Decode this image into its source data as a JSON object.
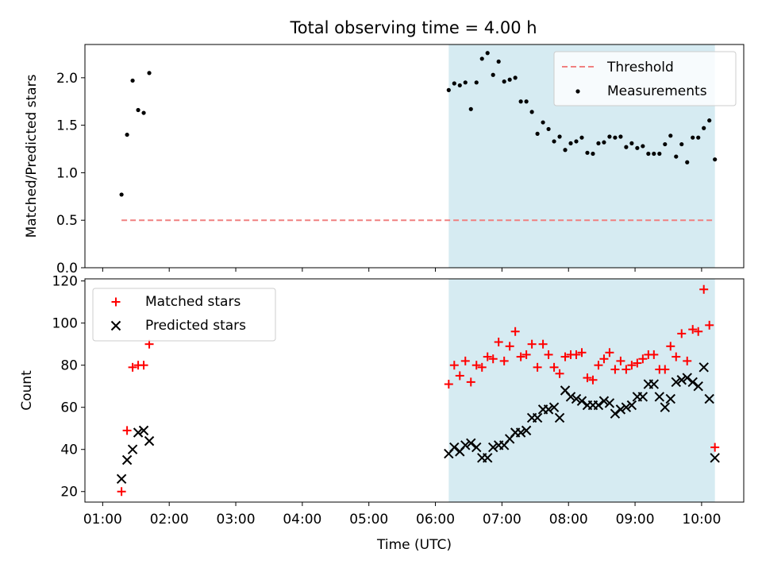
{
  "title": "Total observing time = 4.00 h",
  "colors": {
    "shade": "#add8e6",
    "threshold": "#f08080",
    "measurements": "#000000",
    "matched": "#ff0000",
    "predicted": "#000000"
  },
  "chart_data": [
    {
      "type": "scatter",
      "panel": "top",
      "ylabel": "Matched/Predicted stars",
      "ylim": [
        0,
        2.35
      ],
      "yticks": [
        0.0,
        0.5,
        1.0,
        1.5,
        2.0
      ],
      "ytick_labels": [
        "0.0",
        "0.5",
        "1.0",
        "1.5",
        "2.0"
      ],
      "grid": false,
      "legend_position": "top-right",
      "legend": [
        "Threshold",
        "Measurements"
      ],
      "shaded_span": [
        "06:12",
        "10:12"
      ],
      "threshold": {
        "name": "Threshold",
        "x": [
          "01:17",
          "10:12"
        ],
        "y": 0.5
      },
      "series": [
        {
          "name": "Measurements",
          "x": [
            "01:17",
            "01:22",
            "01:27",
            "01:32",
            "01:37",
            "01:42",
            "06:12",
            "06:17",
            "06:22",
            "06:27",
            "06:32",
            "06:37",
            "06:42",
            "06:47",
            "06:52",
            "06:57",
            "07:02",
            "07:07",
            "07:12",
            "07:17",
            "07:22",
            "07:27",
            "07:32",
            "07:37",
            "07:42",
            "07:47",
            "07:52",
            "07:57",
            "08:02",
            "08:07",
            "08:12",
            "08:17",
            "08:22",
            "08:27",
            "08:32",
            "08:37",
            "08:42",
            "08:47",
            "08:52",
            "08:57",
            "09:02",
            "09:07",
            "09:12",
            "09:17",
            "09:22",
            "09:27",
            "09:32",
            "09:37",
            "09:42",
            "09:47",
            "09:52",
            "09:57",
            "10:02",
            "10:07",
            "10:12"
          ],
          "y": [
            0.77,
            1.4,
            1.97,
            1.66,
            1.63,
            2.05,
            1.87,
            1.94,
            1.92,
            1.95,
            1.67,
            1.95,
            2.2,
            2.26,
            2.03,
            2.17,
            1.96,
            1.98,
            2.0,
            1.75,
            1.75,
            1.64,
            1.41,
            1.53,
            1.46,
            1.33,
            1.38,
            1.24,
            1.31,
            1.33,
            1.37,
            1.21,
            1.2,
            1.31,
            1.32,
            1.38,
            1.37,
            1.38,
            1.27,
            1.31,
            1.26,
            1.28,
            1.2,
            1.2,
            1.2,
            1.3,
            1.39,
            1.17,
            1.3,
            1.11,
            1.37,
            1.37,
            1.47,
            1.55,
            1.14
          ]
        }
      ]
    },
    {
      "type": "scatter",
      "panel": "bottom",
      "xlabel": "Time (UTC)",
      "ylabel": "Count",
      "xlim": [
        "00:44",
        "10:38"
      ],
      "ylim": [
        15,
        121
      ],
      "xticks": [
        "01:00",
        "02:00",
        "03:00",
        "04:00",
        "05:00",
        "06:00",
        "07:00",
        "08:00",
        "09:00",
        "10:00"
      ],
      "yticks": [
        20,
        40,
        60,
        80,
        100,
        120
      ],
      "ytick_labels": [
        "20",
        "40",
        "60",
        "80",
        "100",
        "120"
      ],
      "grid": false,
      "legend_position": "top-left",
      "legend": [
        "Matched stars",
        "Predicted stars"
      ],
      "shaded_span": [
        "06:12",
        "10:12"
      ],
      "series": [
        {
          "name": "Matched stars",
          "x": [
            "01:17",
            "01:22",
            "01:27",
            "01:32",
            "01:37",
            "01:42",
            "06:12",
            "06:17",
            "06:22",
            "06:27",
            "06:32",
            "06:37",
            "06:42",
            "06:47",
            "06:52",
            "06:57",
            "07:02",
            "07:07",
            "07:12",
            "07:17",
            "07:22",
            "07:27",
            "07:32",
            "07:37",
            "07:42",
            "07:47",
            "07:52",
            "07:57",
            "08:02",
            "08:07",
            "08:12",
            "08:17",
            "08:22",
            "08:27",
            "08:32",
            "08:37",
            "08:42",
            "08:47",
            "08:52",
            "08:57",
            "09:02",
            "09:07",
            "09:12",
            "09:17",
            "09:22",
            "09:27",
            "09:32",
            "09:37",
            "09:42",
            "09:47",
            "09:52",
            "09:57",
            "10:02",
            "10:07",
            "10:12"
          ],
          "y": [
            20,
            49,
            79,
            80,
            80,
            90,
            71,
            80,
            75,
            82,
            72,
            80,
            79,
            84,
            83,
            91,
            82,
            89,
            96,
            84,
            85,
            90,
            79,
            90,
            85,
            79,
            76,
            84,
            85,
            85,
            86,
            74,
            73,
            80,
            83,
            86,
            78,
            82,
            78,
            80,
            81,
            83,
            85,
            85,
            78,
            78,
            89,
            84,
            95,
            82,
            97,
            96,
            116,
            99,
            41
          ]
        },
        {
          "name": "Predicted stars",
          "x": [
            "01:17",
            "01:22",
            "01:27",
            "01:32",
            "01:37",
            "01:42",
            "06:12",
            "06:17",
            "06:22",
            "06:27",
            "06:32",
            "06:37",
            "06:42",
            "06:47",
            "06:52",
            "06:57",
            "07:02",
            "07:07",
            "07:12",
            "07:17",
            "07:22",
            "07:27",
            "07:32",
            "07:37",
            "07:42",
            "07:47",
            "07:52",
            "07:57",
            "08:02",
            "08:07",
            "08:12",
            "08:17",
            "08:22",
            "08:27",
            "08:32",
            "08:37",
            "08:42",
            "08:47",
            "08:52",
            "08:57",
            "09:02",
            "09:07",
            "09:12",
            "09:17",
            "09:22",
            "09:27",
            "09:32",
            "09:37",
            "09:42",
            "09:47",
            "09:52",
            "09:57",
            "10:02",
            "10:07",
            "10:12"
          ],
          "y": [
            26,
            35,
            40,
            48,
            49,
            44,
            38,
            41,
            39,
            42,
            43,
            41,
            36,
            36,
            41,
            42,
            42,
            45,
            48,
            48,
            49,
            55,
            55,
            59,
            59,
            60,
            55,
            68,
            65,
            64,
            63,
            61,
            61,
            61,
            63,
            62,
            57,
            59,
            60,
            61,
            65,
            65,
            71,
            71,
            65,
            60,
            64,
            72,
            73,
            74,
            72,
            70,
            79,
            64,
            36
          ]
        }
      ]
    }
  ]
}
